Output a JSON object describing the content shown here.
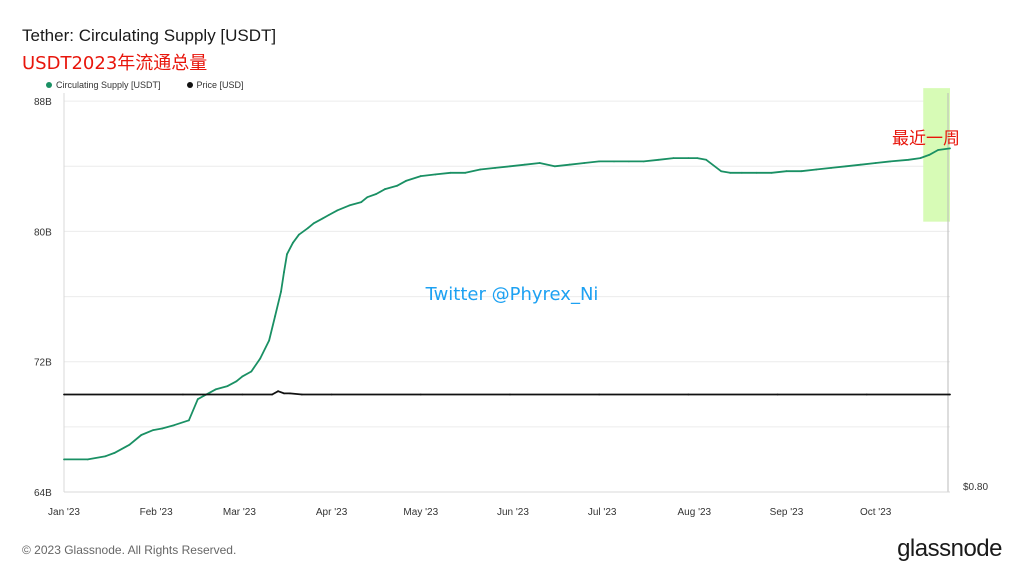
{
  "header": {
    "title": "Tether: Circulating Supply [USDT]",
    "subtitle": "USDT2023年流通总量"
  },
  "footer": {
    "copyright": "© 2023 Glassnode. All Rights Reserved.",
    "brand": "glassnode"
  },
  "colors": {
    "supply": "#1a9064",
    "price": "#111111",
    "highlight": "#d7fbb6",
    "grid": "#ececec",
    "annotation": "#e8160c",
    "watermark": "#1da1f2"
  },
  "chart_data": {
    "type": "line",
    "title": "Tether: Circulating Supply [USDT]",
    "legend": {
      "position": "top-left",
      "entries": [
        "Circulating Supply [USDT]",
        "Price [USD]"
      ]
    },
    "grid": true,
    "y_left": {
      "ticks": [
        "64B",
        "72B",
        "80B",
        "88B"
      ],
      "tick_values": [
        64,
        72,
        80,
        88
      ],
      "range": [
        64,
        88.5
      ]
    },
    "y_right": {
      "ticks": [
        "$0.80"
      ]
    },
    "x_ticks": [
      "Jan '23",
      "Feb '23",
      "Mar '23",
      "Apr '23",
      "May '23",
      "Jun '23",
      "Jul '23",
      "Aug '23",
      "Sep '23",
      "Oct '23"
    ],
    "x_tick_days": [
      0,
      31,
      59,
      90,
      120,
      151,
      181,
      212,
      243,
      273
    ],
    "x_range_days": [
      0,
      298
    ],
    "series": [
      {
        "name": "Circulating Supply [USDT]",
        "x_days": [
          0,
          8,
          14,
          17,
          22,
          26,
          30,
          33,
          37,
          42,
          45,
          47,
          48,
          51,
          55,
          58,
          60,
          63,
          66,
          69,
          71,
          73,
          74,
          75,
          77,
          79,
          82,
          84,
          87,
          89,
          92,
          96,
          100,
          102,
          105,
          108,
          112,
          115,
          120,
          125,
          130,
          135,
          140,
          145,
          150,
          155,
          160,
          165,
          170,
          175,
          180,
          185,
          190,
          195,
          200,
          205,
          210,
          213,
          216,
          221,
          224,
          228,
          233,
          238,
          243,
          248,
          253,
          258,
          263,
          268,
          273,
          278,
          284,
          288,
          291,
          294,
          298
        ],
        "values": [
          66.0,
          66.0,
          66.2,
          66.4,
          66.9,
          67.5,
          67.8,
          67.9,
          68.1,
          68.4,
          69.7,
          69.9,
          70.0,
          70.3,
          70.5,
          70.8,
          71.1,
          71.4,
          72.2,
          73.3,
          74.8,
          76.3,
          77.5,
          78.6,
          79.3,
          79.8,
          80.2,
          80.5,
          80.8,
          81.0,
          81.3,
          81.6,
          81.8,
          82.1,
          82.3,
          82.6,
          82.8,
          83.1,
          83.4,
          83.5,
          83.6,
          83.6,
          83.8,
          83.9,
          84.0,
          84.1,
          84.2,
          84.0,
          84.1,
          84.2,
          84.3,
          84.3,
          84.3,
          84.3,
          84.4,
          84.5,
          84.5,
          84.5,
          84.4,
          83.7,
          83.6,
          83.6,
          83.6,
          83.6,
          83.7,
          83.7,
          83.8,
          83.9,
          84.0,
          84.1,
          84.2,
          84.3,
          84.4,
          84.5,
          84.7,
          85.0,
          85.1
        ]
      },
      {
        "name": "Price [USD]",
        "x_days": [
          0,
          40,
          60,
          70,
          72,
          74,
          76,
          80,
          90,
          120,
          150,
          180,
          210,
          240,
          270,
          298
        ],
        "values": [
          1.0,
          1.0,
          1.0,
          1.0,
          1.003,
          1.001,
          1.001,
          1.0,
          1.0,
          1.0,
          1.0,
          1.0,
          1.0,
          1.0,
          1.0,
          1.0
        ]
      }
    ],
    "highlight": {
      "x_days": [
        289,
        298
      ],
      "y_range": [
        80.6,
        88.8
      ],
      "label": "最近一周"
    },
    "watermark": "Twitter @Phyrex_Ni"
  }
}
